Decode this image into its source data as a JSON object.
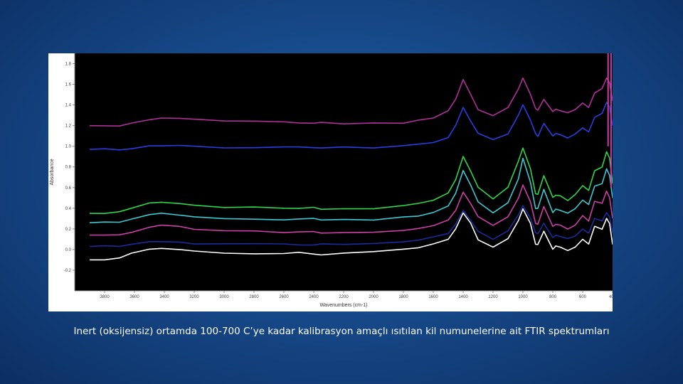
{
  "caption": "Inert (oksijensiz) ortamda 100-700 C’ye kadar kalibrasyon amaçlı ısıtılan kil numunelerine ait FTIR spektrumları",
  "colors": {
    "slide_background": "#174a8a",
    "plot_background": "#000000",
    "frame": "#ffffff"
  },
  "chart_data": {
    "type": "line",
    "title": "",
    "xlabel": "Wavenumbers (cm-1)",
    "ylabel": "Absorbance",
    "xlim": [
      4000,
      400
    ],
    "x_reversed": true,
    "ylim": [
      -0.4,
      1.9
    ],
    "x_ticks": [
      {
        "value": 3800,
        "label": "3800"
      },
      {
        "value": 3600,
        "label": "3600"
      },
      {
        "value": 3400,
        "label": "3400"
      },
      {
        "value": 3200,
        "label": "3200"
      },
      {
        "value": 3000,
        "label": "3000"
      },
      {
        "value": 2800,
        "label": "2800"
      },
      {
        "value": 2600,
        "label": "2600"
      },
      {
        "value": 2400,
        "label": "2400"
      },
      {
        "value": 2200,
        "label": "2200"
      },
      {
        "value": 2000,
        "label": "2000"
      },
      {
        "value": 1800,
        "label": "1800"
      },
      {
        "value": 1600,
        "label": "1600"
      },
      {
        "value": 1400,
        "label": "1400"
      },
      {
        "value": 1200,
        "label": "1200"
      },
      {
        "value": 1000,
        "label": "1000"
      },
      {
        "value": 800,
        "label": "800"
      },
      {
        "value": 600,
        "label": "600"
      },
      {
        "value": 400,
        "label": "400"
      }
    ],
    "y_ticks": [
      {
        "value": 1.8,
        "label": "1.8"
      },
      {
        "value": 1.6,
        "label": "1.6"
      },
      {
        "value": 1.4,
        "label": "1.4"
      },
      {
        "value": 1.2,
        "label": "1.2"
      },
      {
        "value": 1.0,
        "label": "1.0"
      },
      {
        "value": 0.8,
        "label": "0.8"
      },
      {
        "value": 0.6,
        "label": "0.6"
      },
      {
        "value": 0.4,
        "label": "0.4"
      },
      {
        "value": 0.2,
        "label": "0.2"
      },
      {
        "value": 0.0,
        "label": "0.0"
      },
      {
        "value": -0.2,
        "label": "-0.2"
      }
    ],
    "grid": false,
    "legend": "none",
    "x": [
      3900,
      3800,
      3700,
      3620,
      3500,
      3420,
      3300,
      3200,
      3000,
      2800,
      2600,
      2500,
      2400,
      2350,
      2200,
      2000,
      1800,
      1700,
      1600,
      1500,
      1450,
      1400,
      1350,
      1300,
      1200,
      1100,
      1030,
      1000,
      950,
      915,
      900,
      860,
      800,
      780,
      750,
      700,
      650,
      600,
      560,
      520,
      470,
      440,
      420,
      400
    ],
    "series": [
      {
        "color": "#ffffff",
        "values": [
          -0.1,
          -0.1,
          -0.08,
          -0.04,
          0.0,
          0.01,
          0.0,
          -0.02,
          -0.03,
          -0.04,
          -0.04,
          -0.03,
          -0.04,
          -0.05,
          -0.04,
          -0.02,
          0.0,
          0.02,
          0.05,
          0.1,
          0.2,
          0.35,
          0.25,
          0.1,
          0.03,
          0.1,
          0.28,
          0.4,
          0.25,
          0.05,
          0.05,
          0.18,
          0.0,
          0.03,
          0.03,
          -0.01,
          0.02,
          0.1,
          0.05,
          0.22,
          0.2,
          0.3,
          0.25,
          0.05
        ]
      },
      {
        "color": "#1c2a9c",
        "values": [
          0.03,
          0.03,
          0.03,
          0.05,
          0.07,
          0.08,
          0.07,
          0.06,
          0.05,
          0.05,
          0.05,
          0.05,
          0.05,
          0.05,
          0.05,
          0.06,
          0.07,
          0.09,
          0.12,
          0.16,
          0.24,
          0.38,
          0.28,
          0.18,
          0.1,
          0.18,
          0.33,
          0.42,
          0.3,
          0.16,
          0.15,
          0.25,
          0.12,
          0.14,
          0.13,
          0.1,
          0.13,
          0.2,
          0.16,
          0.3,
          0.28,
          0.36,
          0.32,
          0.16
        ]
      },
      {
        "color": "#cc3fa6",
        "values": [
          0.14,
          0.14,
          0.14,
          0.17,
          0.22,
          0.23,
          0.22,
          0.2,
          0.18,
          0.18,
          0.17,
          0.17,
          0.17,
          0.16,
          0.17,
          0.17,
          0.18,
          0.2,
          0.23,
          0.28,
          0.38,
          0.56,
          0.45,
          0.32,
          0.23,
          0.32,
          0.5,
          0.62,
          0.46,
          0.26,
          0.25,
          0.42,
          0.22,
          0.25,
          0.24,
          0.2,
          0.24,
          0.33,
          0.28,
          0.47,
          0.45,
          0.56,
          0.5,
          0.3
        ]
      },
      {
        "color": "#3bc9d2",
        "values": [
          0.26,
          0.26,
          0.26,
          0.29,
          0.34,
          0.35,
          0.34,
          0.32,
          0.3,
          0.3,
          0.29,
          0.29,
          0.3,
          0.28,
          0.29,
          0.29,
          0.31,
          0.33,
          0.36,
          0.42,
          0.54,
          0.76,
          0.62,
          0.46,
          0.36,
          0.46,
          0.68,
          0.88,
          0.65,
          0.4,
          0.4,
          0.58,
          0.36,
          0.39,
          0.38,
          0.35,
          0.39,
          0.48,
          0.43,
          0.62,
          0.64,
          0.78,
          0.72,
          0.5
        ]
      },
      {
        "color": "#2fd648",
        "values": [
          0.35,
          0.35,
          0.36,
          0.4,
          0.45,
          0.46,
          0.45,
          0.43,
          0.41,
          0.41,
          0.4,
          0.4,
          0.41,
          0.39,
          0.4,
          0.4,
          0.42,
          0.45,
          0.48,
          0.55,
          0.68,
          0.9,
          0.76,
          0.6,
          0.49,
          0.6,
          0.86,
          0.98,
          0.78,
          0.54,
          0.53,
          0.72,
          0.5,
          0.53,
          0.52,
          0.48,
          0.53,
          0.62,
          0.57,
          0.76,
          0.8,
          0.95,
          0.88,
          0.64
        ]
      },
      {
        "color": "#2a3ee0",
        "values": [
          0.97,
          0.97,
          0.97,
          0.98,
          1.0,
          1.01,
          1.01,
          1.0,
          0.99,
          0.99,
          0.99,
          0.99,
          0.99,
          0.99,
          0.99,
          0.99,
          1.0,
          1.02,
          1.04,
          1.09,
          1.2,
          1.38,
          1.25,
          1.12,
          1.06,
          1.12,
          1.3,
          1.4,
          1.25,
          1.12,
          1.1,
          1.22,
          1.1,
          1.12,
          1.11,
          1.08,
          1.12,
          1.18,
          1.14,
          1.28,
          1.32,
          1.42,
          1.38,
          1.2
        ]
      },
      {
        "color": "#b0309a",
        "values": [
          1.2,
          1.2,
          1.2,
          1.22,
          1.25,
          1.27,
          1.27,
          1.26,
          1.24,
          1.24,
          1.23,
          1.23,
          1.23,
          1.23,
          1.22,
          1.22,
          1.23,
          1.25,
          1.28,
          1.34,
          1.46,
          1.64,
          1.5,
          1.36,
          1.3,
          1.38,
          1.56,
          1.66,
          1.5,
          1.36,
          1.35,
          1.46,
          1.33,
          1.36,
          1.34,
          1.32,
          1.36,
          1.42,
          1.38,
          1.52,
          1.56,
          1.66,
          1.62,
          1.44
        ]
      }
    ],
    "annotations": [
      {
        "x1": 430,
        "y1": 1.0,
        "x2": 430,
        "y2": 1.9,
        "color": "#cc3fa6"
      },
      {
        "x1": 410,
        "y1": 0.6,
        "x2": 410,
        "y2": 1.9,
        "color": "#cc3fa6"
      }
    ]
  }
}
